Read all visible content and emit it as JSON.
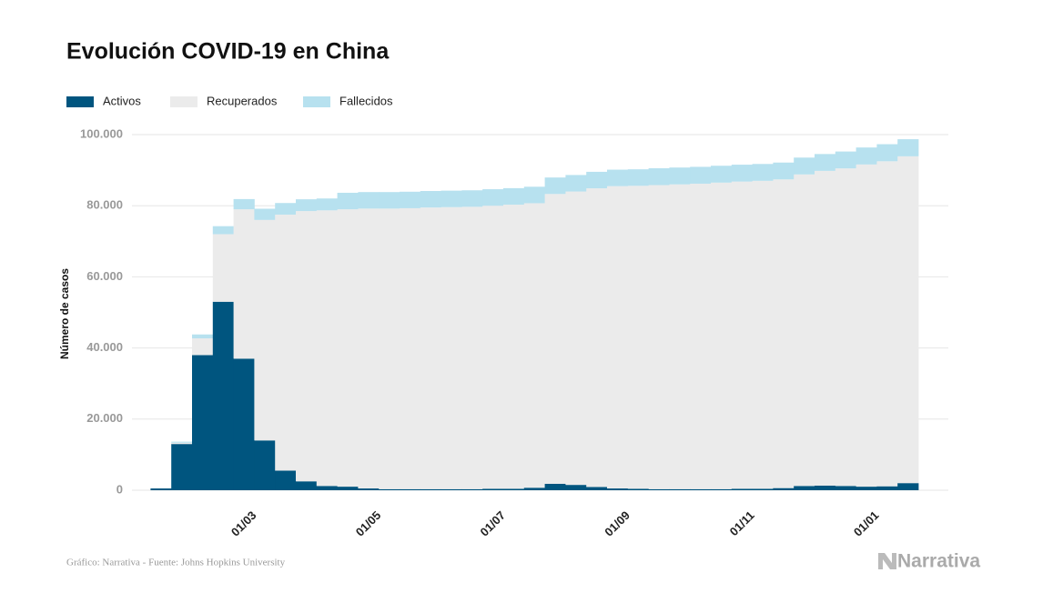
{
  "chart_data": {
    "type": "bar",
    "stacked": true,
    "title": "Evolución COVID-19 en China",
    "y_label": "Número de casos",
    "source": "Gráfico: Narrativa - Fuente: Johns Hopkins University",
    "logo": "Narrativa",
    "categories": [
      null,
      null,
      null,
      null,
      "01/03",
      null,
      null,
      null,
      null,
      null,
      "01/05",
      null,
      null,
      null,
      null,
      null,
      "01/07",
      null,
      null,
      null,
      null,
      null,
      "01/09",
      null,
      null,
      null,
      null,
      null,
      "01/11",
      null,
      null,
      null,
      null,
      null,
      "01/01",
      null,
      null
    ],
    "series": [
      {
        "name": "Activos",
        "color": "#00557f",
        "values": [
          500,
          13000,
          38000,
          53000,
          37000,
          14000,
          5500,
          2500,
          1200,
          1000,
          500,
          300,
          300,
          300,
          300,
          300,
          400,
          400,
          700,
          1800,
          1500,
          900,
          500,
          400,
          300,
          300,
          300,
          300,
          400,
          400,
          600,
          1200,
          1300,
          1200,
          1000,
          1100,
          2000
        ]
      },
      {
        "name": "Recuperados",
        "color": "#ebebeb",
        "values": [
          30,
          350,
          4700,
          19000,
          42000,
          62000,
          72000,
          76000,
          77500,
          78000,
          78700,
          78900,
          79000,
          79200,
          79300,
          79400,
          79600,
          79900,
          80000,
          81500,
          82500,
          84000,
          85000,
          85200,
          85500,
          85700,
          85900,
          86200,
          86400,
          86600,
          86800,
          87600,
          88500,
          89300,
          90600,
          91400,
          91900
        ]
      },
      {
        "name": "Fallecidos",
        "color": "#b7e1ef",
        "values": [
          17,
          300,
          1100,
          2250,
          2870,
          3160,
          3260,
          3310,
          3340,
          4640,
          4640,
          4640,
          4640,
          4640,
          4640,
          4640,
          4640,
          4640,
          4640,
          4640,
          4640,
          4640,
          4640,
          4640,
          4740,
          4740,
          4740,
          4740,
          4740,
          4740,
          4740,
          4740,
          4740,
          4740,
          4780,
          4800,
          4800
        ]
      }
    ],
    "ylim": [
      0,
      100000
    ],
    "yticks": [
      0,
      {
        "value": 20000,
        "label": "20.000"
      },
      {
        "value": 40000,
        "label": "40.000"
      },
      {
        "value": 60000,
        "label": "60.000"
      },
      {
        "value": 80000,
        "label": "80.000"
      },
      {
        "value": 100000,
        "label": "100.000"
      }
    ],
    "grid": true
  }
}
